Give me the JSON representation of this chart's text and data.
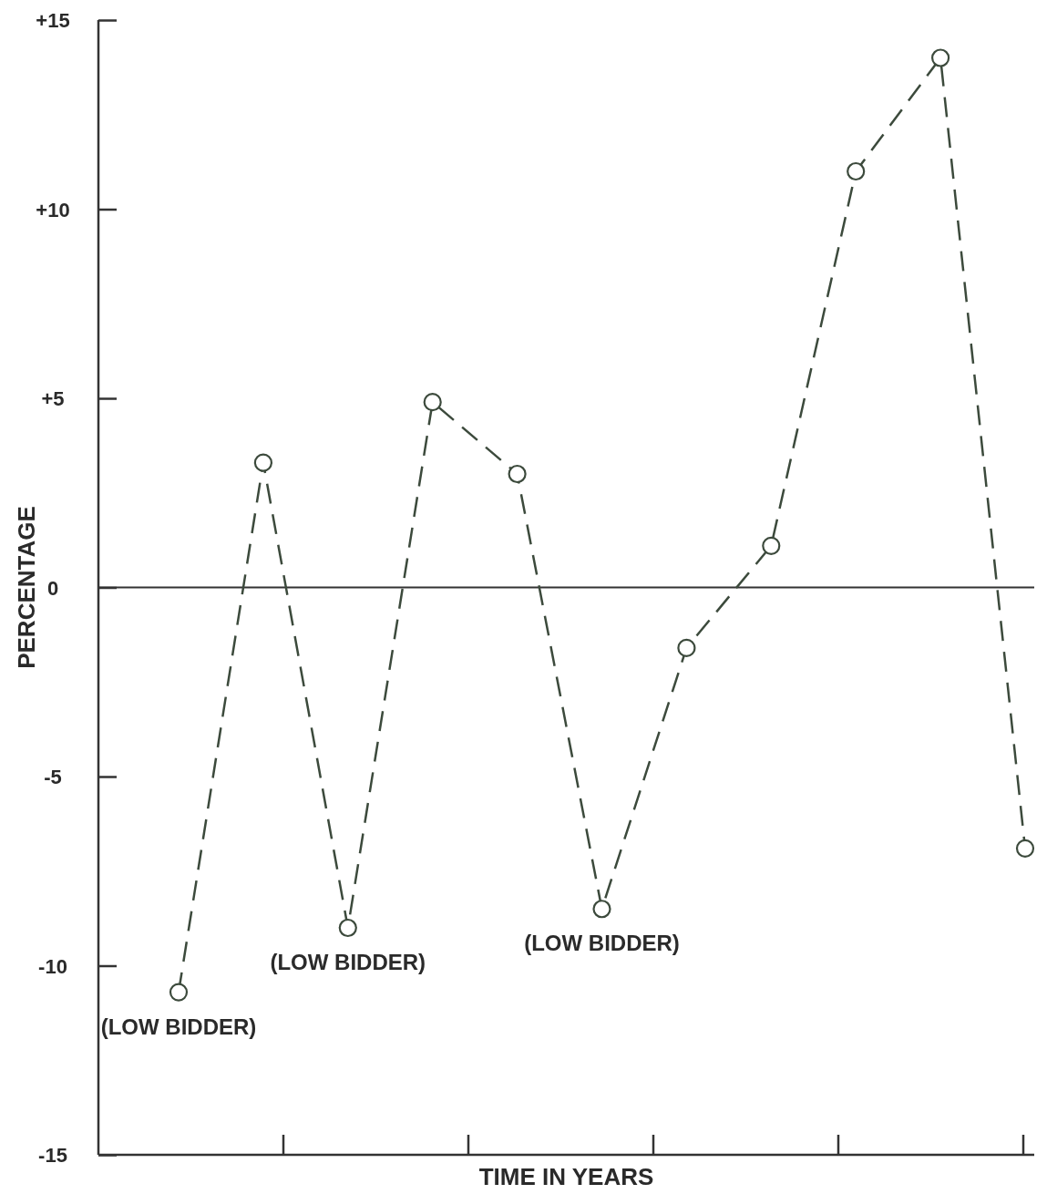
{
  "chart_data": {
    "type": "line",
    "xlabel": "TIME IN YEARS",
    "ylabel": "PERCENTAGE",
    "categories": [
      null,
      null,
      null,
      null,
      null,
      null,
      null,
      null,
      null,
      null,
      null
    ],
    "series": [
      {
        "color": "#3c4a3c",
        "values": [
          -10.7,
          3.3,
          -9.0,
          4.9,
          3.0,
          -8.5,
          -1.6,
          1.1,
          11.0,
          14.0,
          -6.9
        ]
      }
    ],
    "ylim": [
      -15,
      15
    ],
    "yticks": [
      {
        "value": 15,
        "label": "+15"
      },
      {
        "value": 10,
        "label": "+10"
      },
      {
        "value": 5,
        "label": "+5"
      },
      0,
      -5,
      -10,
      -15
    ],
    "tick_labels": "y",
    "marker": "circle",
    "line_style": "dashed",
    "grid": false,
    "ref_lines": [
      {
        "axis": "y",
        "value": 0
      }
    ],
    "annotations": [
      {
        "text": "(LOW BIDDER)",
        "y": -10.7
      },
      {
        "text": "(LOW BIDDER)",
        "y": -9.0
      },
      {
        "text": "(LOW BIDDER)",
        "y": -8.5
      }
    ]
  }
}
